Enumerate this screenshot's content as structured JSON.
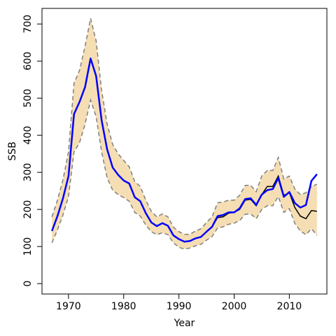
{
  "chart_data": {
    "type": "line",
    "title": "",
    "xlabel": "Year",
    "ylabel": "SSB",
    "xlim": [
      1965.2,
      2016.8
    ],
    "ylim": [
      -28,
      742
    ],
    "xticks": [
      1970,
      1980,
      1990,
      2000,
      2010
    ],
    "yticks": [
      0,
      100,
      200,
      300,
      400,
      500,
      600,
      700
    ],
    "grid": false,
    "legend": "none",
    "colors": {
      "band_fill": "#f5deb3",
      "band_edge": "#808080",
      "estimate_line": "#0000ff",
      "reference_line": "#000000",
      "axis": "#000000"
    },
    "x": [
      1967,
      1968,
      1969,
      1970,
      1971,
      1972,
      1973,
      1974,
      1975,
      1976,
      1977,
      1978,
      1979,
      1980,
      1981,
      1982,
      1983,
      1984,
      1985,
      1986,
      1987,
      1988,
      1989,
      1990,
      1991,
      1992,
      1993,
      1994,
      1995,
      1996,
      1997,
      1998,
      1999,
      2000,
      2001,
      2002,
      2003,
      2004,
      2005,
      2006,
      2007,
      2008,
      2009,
      2010,
      2011,
      2012,
      2013,
      2014,
      2015
    ],
    "series": [
      {
        "role": "estimate",
        "values": [
          142,
          182,
          230,
          290,
          457,
          490,
          530,
          607,
          560,
          440,
          362,
          313,
          293,
          278,
          270,
          233,
          222,
          190,
          165,
          155,
          163,
          156,
          130,
          120,
          113,
          115,
          122,
          126,
          140,
          153,
          182,
          185,
          192,
          192,
          203,
          228,
          230,
          212,
          240,
          252,
          255,
          285,
          234,
          247,
          217,
          205,
          212,
          277,
          295
        ]
      },
      {
        "role": "reference",
        "values": [
          142,
          182,
          230,
          290,
          457,
          490,
          530,
          607,
          560,
          440,
          362,
          313,
          293,
          278,
          270,
          233,
          222,
          190,
          165,
          155,
          163,
          156,
          130,
          120,
          113,
          115,
          122,
          126,
          140,
          153,
          178,
          180,
          190,
          192,
          200,
          225,
          227,
          210,
          240,
          262,
          262,
          290,
          238,
          245,
          205,
          182,
          175,
          197,
          195
        ]
      },
      {
        "role": "lower",
        "values": [
          110,
          145,
          185,
          235,
          355,
          380,
          430,
          495,
          450,
          355,
          285,
          252,
          240,
          232,
          222,
          192,
          182,
          158,
          140,
          132,
          137,
          132,
          110,
          98,
          93,
          96,
          102,
          106,
          117,
          127,
          150,
          153,
          160,
          163,
          170,
          187,
          188,
          175,
          200,
          210,
          210,
          235,
          192,
          202,
          162,
          142,
          132,
          148,
          130
        ]
      },
      {
        "role": "upper",
        "values": [
          180,
          225,
          280,
          355,
          540,
          575,
          640,
          715,
          655,
          520,
          430,
          375,
          350,
          332,
          315,
          275,
          262,
          225,
          195,
          180,
          188,
          180,
          152,
          140,
          133,
          133,
          142,
          148,
          165,
          180,
          218,
          220,
          225,
          225,
          238,
          265,
          265,
          248,
          290,
          305,
          305,
          340,
          282,
          290,
          255,
          240,
          245,
          262,
          268
        ]
      }
    ]
  }
}
